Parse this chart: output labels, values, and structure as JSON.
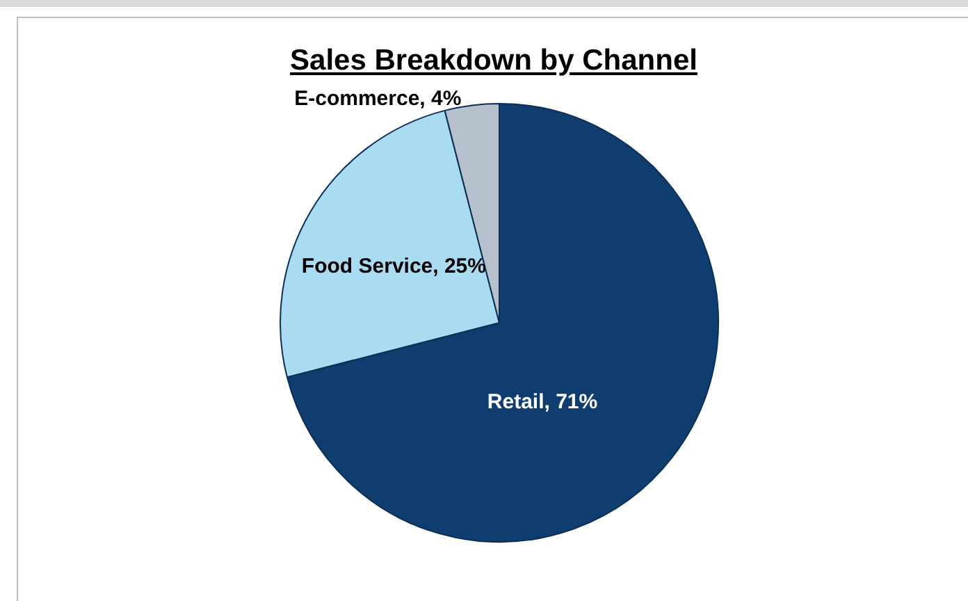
{
  "chart_data": {
    "type": "pie",
    "title": "Sales Breakdown by Channel",
    "categories": [
      "Retail",
      "Food Service",
      "E-commerce"
    ],
    "values": [
      71,
      25,
      4
    ],
    "value_labels": [
      "71%",
      "25%",
      "4%"
    ],
    "colors": [
      "#103d6f",
      "#a9dcf1",
      "#b7c1cd"
    ]
  }
}
